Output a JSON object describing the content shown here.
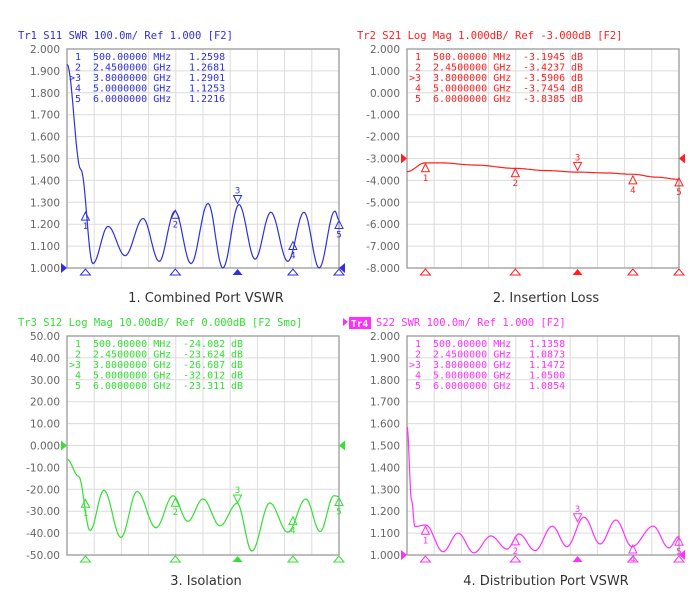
{
  "chart_data": [
    {
      "type": "line",
      "title": "Tr1 S11 SWR 100.0m/ Ref 1.000 [F2]",
      "caption": "1.   Combined Port VSWR",
      "color": "#3030e0",
      "ref_value": 1.0,
      "xlim": [
        0.1,
        6.0
      ],
      "xunit": "GHz",
      "ylim": [
        1.0,
        2.0
      ],
      "yticks": [
        "2.000",
        "1.900",
        "1.800",
        "1.700",
        "1.600",
        "1.500",
        "1.400",
        "1.300",
        "1.200",
        "1.100",
        "1.000"
      ],
      "markers": [
        {
          "id": "1",
          "freq": "500.00000 MHz",
          "value": "1.2598",
          "unit": "",
          "f": 0.5,
          "v": 1.2598
        },
        {
          "id": "2",
          "freq": "2.4500000 GHz",
          "value": "1.2681",
          "unit": "",
          "f": 2.45,
          "v": 1.2681
        },
        {
          "id": ">3",
          "freq": "3.8000000 GHz",
          "value": "1.2901",
          "unit": "",
          "f": 3.8,
          "v": 1.2901,
          "active": true
        },
        {
          "id": "4",
          "freq": "5.0000000 GHz",
          "value": "1.1253",
          "unit": "",
          "f": 5.0,
          "v": 1.1253
        },
        {
          "id": "5",
          "freq": "6.0000000 GHz",
          "value": "1.2216",
          "unit": "",
          "f": 6.0,
          "v": 1.2216
        }
      ],
      "points": [
        [
          0.1,
          1.93
        ],
        [
          0.4,
          1.45
        ],
        [
          0.66,
          1.02
        ],
        [
          0.99,
          1.19
        ],
        [
          1.36,
          1.056
        ],
        [
          1.75,
          1.226
        ],
        [
          2.1,
          1.03
        ],
        [
          2.44,
          1.26
        ],
        [
          2.79,
          1.02
        ],
        [
          3.16,
          1.295
        ],
        [
          3.48,
          1.0
        ],
        [
          3.83,
          1.29
        ],
        [
          4.18,
          1.04
        ],
        [
          4.52,
          1.255
        ],
        [
          4.89,
          1.03
        ],
        [
          5.24,
          1.255
        ],
        [
          5.57,
          1.0
        ],
        [
          5.91,
          1.26
        ],
        [
          6.0,
          1.22
        ]
      ]
    },
    {
      "type": "line",
      "title": "Tr2 S21 Log Mag 1.000dB/ Ref -3.000dB [F2]",
      "caption": "2. Insertion Loss",
      "color": "#ff2020",
      "ref_value": -3.0,
      "xlim": [
        0.1,
        6.0
      ],
      "xunit": "GHz",
      "ylim": [
        -8.0,
        2.0
      ],
      "yticks": [
        "2.000",
        "1.000",
        "0.000",
        "-1.000",
        "-2.000",
        "-3.000",
        "-4.000",
        "-5.000",
        "-6.000",
        "-7.000",
        "-8.000"
      ],
      "markers": [
        {
          "id": "1",
          "freq": "500.00000 MHz",
          "value": "-3.1945",
          "unit": "dB",
          "f": 0.5,
          "v": -3.1945
        },
        {
          "id": "2",
          "freq": "2.4500000 GHz",
          "value": "-3.4237",
          "unit": "dB",
          "f": 2.45,
          "v": -3.4237
        },
        {
          "id": ">3",
          "freq": "3.8000000 GHz",
          "value": "-3.5906",
          "unit": "dB",
          "f": 3.8,
          "v": -3.5906,
          "active": true
        },
        {
          "id": "4",
          "freq": "5.0000000 GHz",
          "value": "-3.7454",
          "unit": "dB",
          "f": 5.0,
          "v": -3.7454
        },
        {
          "id": "5",
          "freq": "6.0000000 GHz",
          "value": "-3.8385",
          "unit": "dB",
          "f": 6.0,
          "v": -3.8385
        }
      ],
      "points": [
        [
          0.1,
          -3.6
        ],
        [
          0.49,
          -3.2
        ],
        [
          0.82,
          -3.2
        ],
        [
          1.6,
          -3.3
        ],
        [
          2.44,
          -3.45
        ],
        [
          3.1,
          -3.55
        ],
        [
          3.79,
          -3.62
        ],
        [
          4.4,
          -3.66
        ],
        [
          5.0,
          -3.72
        ],
        [
          5.5,
          -3.85
        ],
        [
          6.0,
          -3.95
        ]
      ]
    },
    {
      "type": "line",
      "title": "Tr3 S12 Log Mag 10.00dB/ Ref 0.000dB [F2 Smo]",
      "caption": "3. Isolation",
      "color": "#33e033",
      "ref_value": 0.0,
      "xlim": [
        0.1,
        6.0
      ],
      "xunit": "GHz",
      "ylim": [
        -50.0,
        50.0
      ],
      "yticks": [
        "50.00",
        "40.00",
        "30.00",
        "20.00",
        "10.00",
        "0.000",
        "-10.00",
        "-20.00",
        "-30.00",
        "-40.00",
        "-50.00"
      ],
      "markers": [
        {
          "id": "1",
          "freq": "500.00000 MHz",
          "value": "-24.082",
          "unit": "dB",
          "f": 0.5,
          "v": -24.082
        },
        {
          "id": "2",
          "freq": "2.4500000 GHz",
          "value": "-23.624",
          "unit": "dB",
          "f": 2.45,
          "v": -23.624
        },
        {
          "id": ">3",
          "freq": "3.8000000 GHz",
          "value": "-26.687",
          "unit": "dB",
          "f": 3.8,
          "v": -26.687,
          "active": true
        },
        {
          "id": "4",
          "freq": "5.0000000 GHz",
          "value": "-32.012",
          "unit": "dB",
          "f": 5.0,
          "v": -32.012
        },
        {
          "id": "5",
          "freq": "6.0000000 GHz",
          "value": "-23.311",
          "unit": "dB",
          "f": 6.0,
          "v": -23.311
        }
      ],
      "points": [
        [
          0.1,
          -6.2
        ],
        [
          0.35,
          -14
        ],
        [
          0.6,
          -38.8
        ],
        [
          0.9,
          -20.4
        ],
        [
          1.27,
          -42
        ],
        [
          1.62,
          -21
        ],
        [
          2.03,
          -37.6
        ],
        [
          2.4,
          -22.9
        ],
        [
          2.72,
          -34.6
        ],
        [
          3.05,
          -24.4
        ],
        [
          3.42,
          -36.7
        ],
        [
          3.79,
          -26.4
        ],
        [
          4.11,
          -48.2
        ],
        [
          4.5,
          -26.2
        ],
        [
          4.89,
          -39.6
        ],
        [
          5.28,
          -24.4
        ],
        [
          5.59,
          -39.3
        ],
        [
          5.89,
          -22.9
        ],
        [
          6.0,
          -23.3
        ]
      ]
    },
    {
      "type": "line",
      "title": "S22 SWR 100.0m/ Ref 1.000 [F2]",
      "trace_badge": "Tr4",
      "caption": "4. Distribution  Port VSWR",
      "color": "#ff30ff",
      "ref_value": 1.0,
      "xlim": [
        0.1,
        6.0
      ],
      "xunit": "GHz",
      "ylim": [
        1.0,
        2.0
      ],
      "yticks": [
        "2.000",
        "1.900",
        "1.800",
        "1.700",
        "1.600",
        "1.500",
        "1.400",
        "1.300",
        "1.200",
        "1.100",
        "1.000"
      ],
      "markers": [
        {
          "id": "1",
          "freq": "500.00000 MHz",
          "value": "1.1358",
          "unit": "",
          "f": 0.5,
          "v": 1.1358
        },
        {
          "id": "2",
          "freq": "2.4500000 GHz",
          "value": "1.0873",
          "unit": "",
          "f": 2.45,
          "v": 1.0873
        },
        {
          "id": ">3",
          "freq": "3.8000000 GHz",
          "value": "1.1472",
          "unit": "",
          "f": 3.8,
          "v": 1.1472,
          "active": true
        },
        {
          "id": "4",
          "freq": "5.0000000 GHz",
          "value": "1.0500",
          "unit": "",
          "f": 5.0,
          "v": 1.05
        },
        {
          "id": "5",
          "freq": "6.0000000 GHz",
          "value": "1.0854",
          "unit": "",
          "f": 6.0,
          "v": 1.0854
        }
      ],
      "points": [
        [
          0.1,
          1.586
        ],
        [
          0.2,
          1.25
        ],
        [
          0.27,
          1.13
        ],
        [
          0.51,
          1.137
        ],
        [
          0.88,
          1.015
        ],
        [
          1.21,
          1.1
        ],
        [
          1.55,
          1.01
        ],
        [
          1.92,
          1.087
        ],
        [
          2.27,
          1.027
        ],
        [
          2.53,
          1.096
        ],
        [
          2.88,
          1.02
        ],
        [
          3.25,
          1.132
        ],
        [
          3.57,
          1.038
        ],
        [
          3.94,
          1.173
        ],
        [
          4.29,
          1.05
        ],
        [
          4.63,
          1.16
        ],
        [
          4.98,
          1.038
        ],
        [
          5.44,
          1.132
        ],
        [
          5.78,
          1.032
        ],
        [
          6.0,
          1.085
        ]
      ]
    }
  ]
}
